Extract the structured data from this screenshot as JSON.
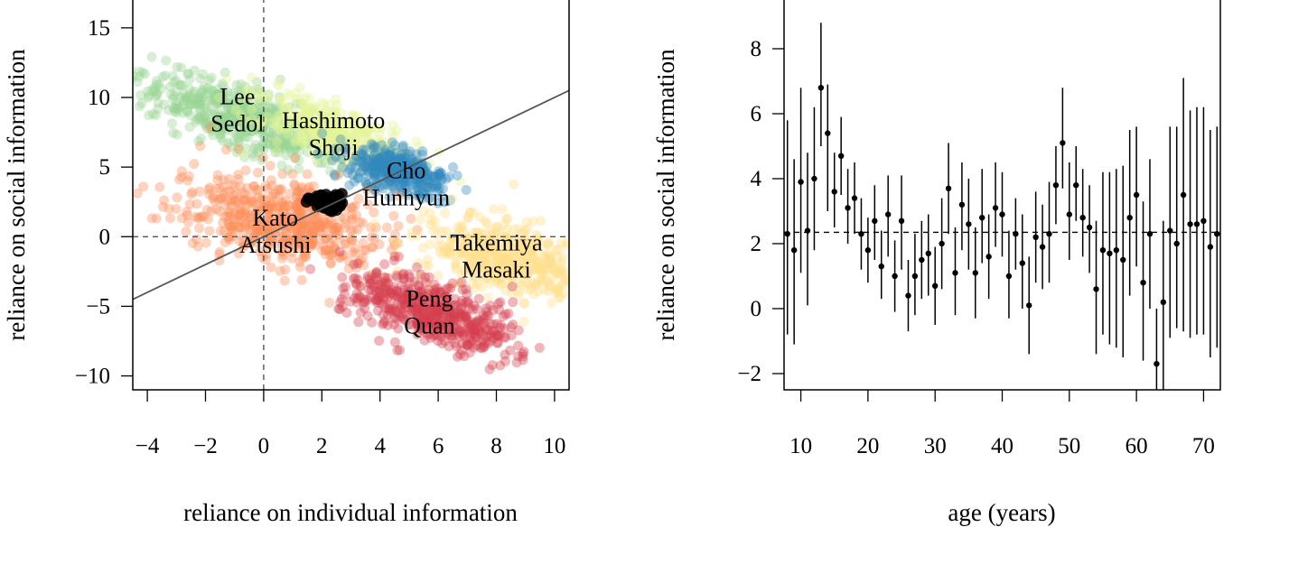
{
  "chart_data": [
    {
      "type": "scatter",
      "xlabel": "reliance on individual information",
      "ylabel": "reliance on social information",
      "xlim": [
        -4.5,
        10.5
      ],
      "ylim": [
        -11,
        17
      ],
      "xticks": [
        -4,
        -2,
        0,
        2,
        4,
        6,
        8,
        10
      ],
      "yticks": [
        -10,
        -5,
        0,
        5,
        10,
        15
      ],
      "xtick_labels": [
        "−4",
        "−2",
        "0",
        "2",
        "4",
        "6",
        "8",
        "10"
      ],
      "ytick_labels": [
        "−10",
        "−5",
        "0",
        "5",
        "10",
        "15"
      ],
      "reference_lines": {
        "x": 0,
        "y": 0,
        "style": "dashed"
      },
      "fit_line": {
        "slope": 1.0,
        "intercept": 0.0,
        "x_from": -4.5,
        "x_to": 10.5,
        "color": "#555555"
      },
      "series": [
        {
          "name": "Lee Sedol",
          "label_lines": [
            "Lee",
            "Sedol"
          ],
          "color": "#99d594",
          "center": [
            -0.8,
            8.5
          ],
          "spread_along": 2.3,
          "spread_across": 0.9,
          "count": 520,
          "label_at": [
            -0.9,
            9.5
          ]
        },
        {
          "name": "Hashimoto Shoji",
          "label_lines": [
            "Hashimoto",
            "Shoji"
          ],
          "color": "#e6f598",
          "center": [
            2.3,
            7.5
          ],
          "spread_along": 1.8,
          "spread_across": 0.8,
          "count": 380,
          "label_at": [
            2.4,
            7.8
          ]
        },
        {
          "name": "Cho Hunhyun",
          "label_lines": [
            "Cho",
            "Hunhyun"
          ],
          "color": "#3288bd",
          "center": [
            4.6,
            4.7
          ],
          "spread_along": 1.0,
          "spread_across": 0.6,
          "count": 380,
          "label_at": [
            4.9,
            4.2
          ]
        },
        {
          "name": "Kato Atsushi",
          "label_lines": [
            "Kato",
            "Atsushi"
          ],
          "color": "#fc8d59",
          "center": [
            0.6,
            1.2
          ],
          "spread_along": 1.9,
          "spread_across": 1.4,
          "count": 560,
          "label_at": [
            0.4,
            0.8
          ]
        },
        {
          "name": "Takemiya Masaki",
          "label_lines": [
            "Takemiya",
            "Masaki"
          ],
          "color": "#fee08b",
          "center": [
            8.2,
            -1.4
          ],
          "spread_along": 1.7,
          "spread_across": 1.1,
          "count": 440,
          "label_at": [
            8.0,
            -1.0
          ]
        },
        {
          "name": "Peng Quan",
          "label_lines": [
            "Peng",
            "Quan"
          ],
          "color": "#d53e4f",
          "center": [
            5.8,
            -5.4
          ],
          "spread_along": 1.8,
          "spread_across": 0.9,
          "count": 520,
          "label_at": [
            5.7,
            -5.0
          ]
        },
        {
          "name": "",
          "label_lines": [],
          "color": "#000000",
          "center": [
            2.2,
            2.4
          ],
          "spread_along": 0.35,
          "spread_across": 0.25,
          "count": 70
        }
      ]
    },
    {
      "type": "scatter",
      "style": "points with vertical error bars",
      "xlabel": "age (years)",
      "ylabel": "reliance on social information",
      "xlim": [
        7.5,
        72.5
      ],
      "ylim": [
        -2.5,
        9.5
      ],
      "xticks": [
        10,
        20,
        30,
        40,
        50,
        60,
        70
      ],
      "yticks": [
        -2,
        0,
        2,
        4,
        6,
        8
      ],
      "xtick_labels": [
        "10",
        "20",
        "30",
        "40",
        "50",
        "60",
        "70"
      ],
      "ytick_labels": [
        "−2",
        "0",
        "2",
        "4",
        "6",
        "8"
      ],
      "reference_line": {
        "y": 2.35,
        "style": "dashed"
      },
      "x": [
        8,
        9,
        10,
        11,
        12,
        13,
        14,
        15,
        16,
        17,
        18,
        19,
        20,
        21,
        22,
        23,
        24,
        25,
        26,
        27,
        28,
        29,
        30,
        31,
        32,
        33,
        34,
        35,
        36,
        37,
        38,
        39,
        40,
        41,
        42,
        43,
        44,
        45,
        46,
        47,
        48,
        49,
        50,
        51,
        52,
        53,
        54,
        55,
        56,
        57,
        58,
        59,
        60,
        61,
        62,
        63,
        64,
        65,
        66,
        67,
        68,
        69,
        70,
        71,
        72
      ],
      "y": [
        2.3,
        1.8,
        3.9,
        2.4,
        4.0,
        6.8,
        5.4,
        3.6,
        4.7,
        3.1,
        3.4,
        2.3,
        1.8,
        2.7,
        1.3,
        2.9,
        1.0,
        2.7,
        0.4,
        1.0,
        1.5,
        1.7,
        0.7,
        2.0,
        3.7,
        1.1,
        3.2,
        2.6,
        1.1,
        2.8,
        1.6,
        3.1,
        2.9,
        1.0,
        2.3,
        1.4,
        0.1,
        2.2,
        1.9,
        2.3,
        3.8,
        5.1,
        2.9,
        3.8,
        2.8,
        2.5,
        0.6,
        1.8,
        1.7,
        1.8,
        1.5,
        2.8,
        3.5,
        0.8,
        2.3,
        -1.7,
        0.2,
        2.4,
        2.0,
        3.5,
        2.6,
        2.6,
        2.7,
        1.9,
        2.3
      ],
      "lower": [
        -0.8,
        -1.1,
        1.1,
        0.1,
        1.8,
        5.0,
        3.0,
        2.5,
        3.5,
        2.0,
        2.3,
        1.2,
        0.8,
        1.5,
        0.3,
        1.6,
        -0.1,
        1.2,
        -0.7,
        -0.2,
        0.3,
        0.4,
        -0.5,
        0.6,
        2.3,
        -0.2,
        1.8,
        1.2,
        -0.3,
        1.4,
        0.3,
        1.9,
        1.6,
        -0.3,
        1.2,
        0.0,
        -1.4,
        0.8,
        0.6,
        0.8,
        2.6,
        3.7,
        1.5,
        2.7,
        1.6,
        1.1,
        -1.4,
        -0.8,
        -1.1,
        -1.2,
        -1.5,
        0.4,
        1.3,
        -1.6,
        0.0,
        -2.5,
        -2.5,
        -0.9,
        -0.6,
        -0.7,
        -0.9,
        -0.8,
        -0.8,
        -1.5,
        -1.2
      ],
      "upper": [
        5.8,
        4.6,
        6.8,
        4.8,
        6.2,
        8.8,
        6.9,
        4.8,
        5.9,
        4.3,
        4.5,
        3.4,
        2.8,
        3.8,
        2.4,
        4.1,
        2.1,
        4.1,
        1.5,
        2.3,
        2.7,
        2.9,
        1.9,
        3.4,
        5.1,
        2.5,
        4.5,
        4.0,
        2.5,
        4.3,
        2.9,
        4.5,
        4.2,
        2.4,
        3.4,
        2.9,
        1.6,
        3.6,
        3.2,
        3.9,
        5.0,
        6.8,
        4.5,
        5.0,
        4.3,
        3.8,
        2.7,
        4.2,
        4.2,
        4.3,
        4.4,
        5.5,
        5.6,
        3.3,
        4.6,
        0.0,
        2.7,
        5.6,
        5.6,
        7.1,
        6.1,
        6.2,
        6.2,
        5.5,
        5.6
      ]
    }
  ]
}
